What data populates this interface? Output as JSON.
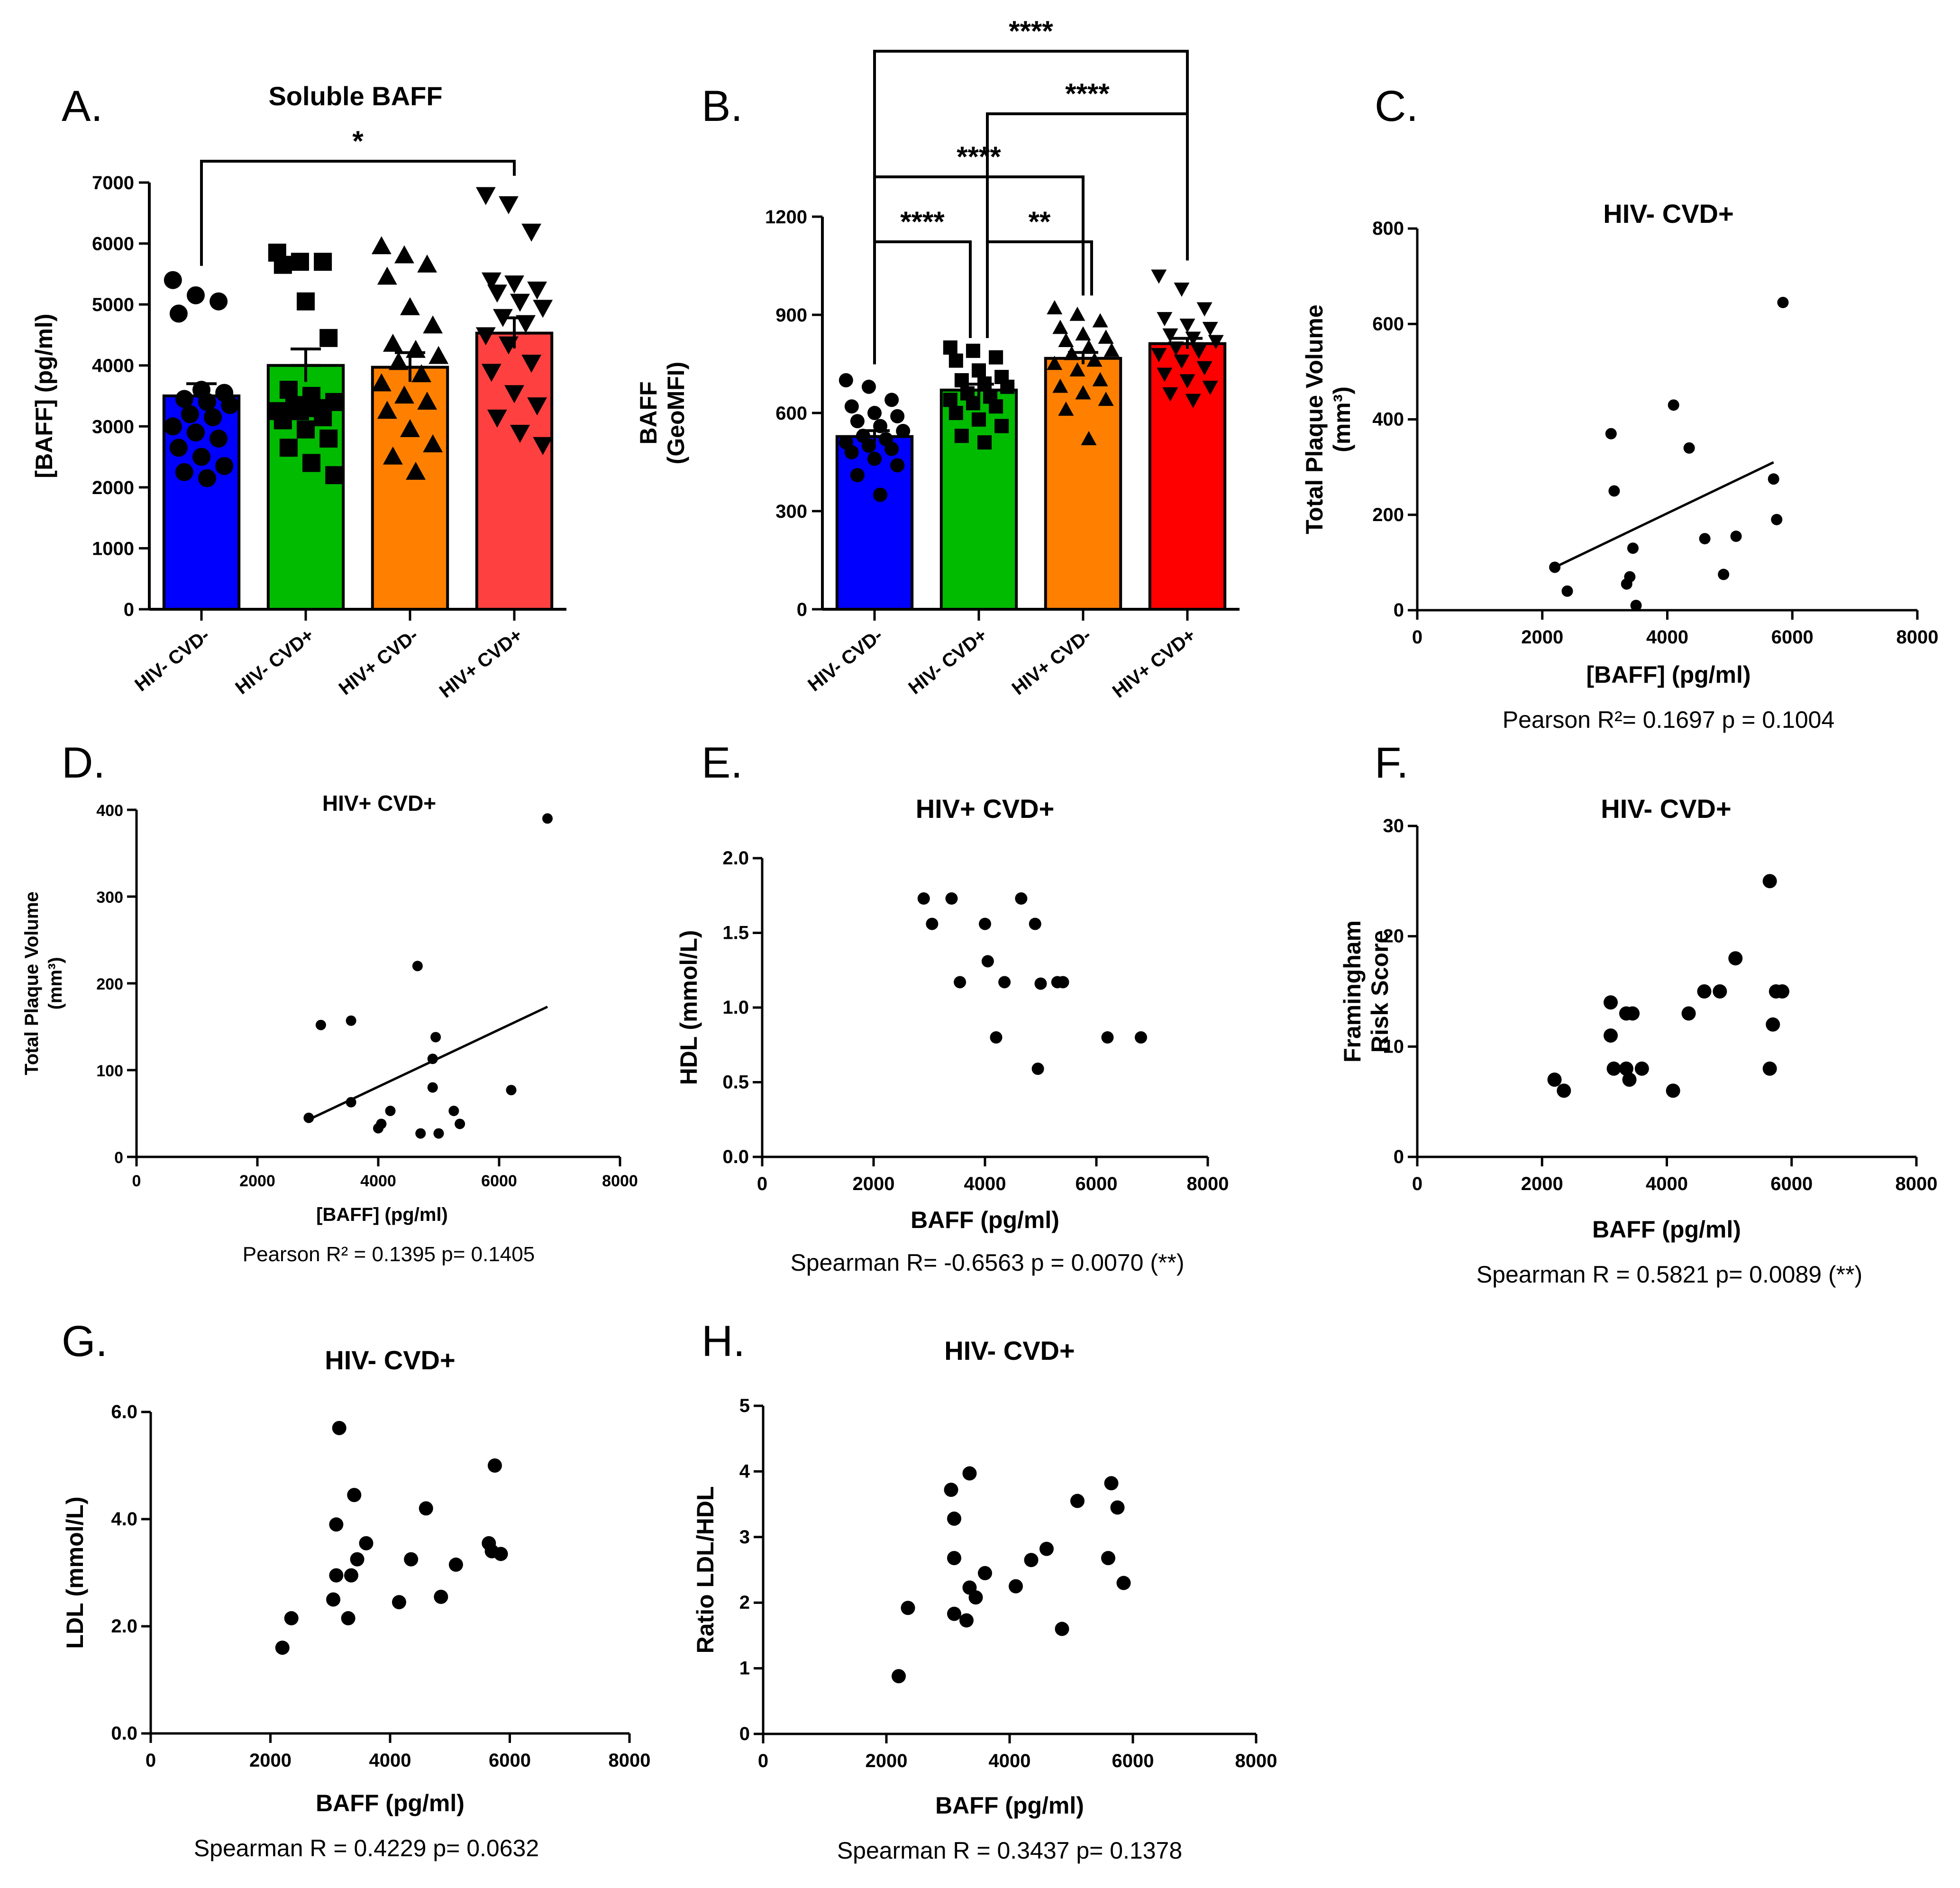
{
  "figure": {
    "panels": [
      "A.",
      "B.",
      "C.",
      "D.",
      "E.",
      "F.",
      "G.",
      "H."
    ]
  },
  "chart_data": [
    {
      "id": "A",
      "type": "bar",
      "panel_label": "A.",
      "title": "Soluble BAFF",
      "ylabel": "[BAFF] (pg/ml)",
      "ylim": [
        0,
        7000
      ],
      "yticks": [
        0,
        1000,
        2000,
        3000,
        4000,
        5000,
        6000,
        7000
      ],
      "categories": [
        "HIV- CVD-",
        "HIV- CVD+",
        "HIV+ CVD-",
        "HIV+ CVD+"
      ],
      "colors": [
        "#0000ff",
        "#00bb00",
        "#ff8000",
        "#ff4040"
      ],
      "marker_shapes": [
        "circle",
        "square",
        "triangle",
        "triangle-down"
      ],
      "means": [
        3500,
        4000,
        3970,
        4530
      ],
      "sem": [
        200,
        270,
        240,
        250
      ],
      "points": [
        [
          5400,
          5150,
          5050,
          4850,
          3600,
          3550,
          3450,
          3400,
          3350,
          3200,
          3150,
          3000,
          2900,
          2800,
          2650,
          2500,
          2350,
          2250,
          2150
        ],
        [
          5850,
          5700,
          5700,
          5650,
          5050,
          4450,
          3600,
          3500,
          3400,
          3350,
          3300,
          3250,
          3250,
          3150,
          3100,
          2950,
          2800,
          2650,
          2400,
          2200
        ],
        [
          5950,
          5800,
          5650,
          5450,
          4950,
          4650,
          4350,
          4250,
          4150,
          4050,
          3850,
          3700,
          3500,
          3400,
          3250,
          2950,
          2700,
          2500,
          2250
        ],
        [
          6800,
          6650,
          6200,
          5400,
          5350,
          5250,
          5200,
          5050,
          4950,
          4800,
          4700,
          4500,
          4350,
          4050,
          3900,
          3550,
          3350,
          3150,
          2900,
          2700
        ]
      ],
      "comparisons": [
        {
          "from": 0,
          "to": 3,
          "label": "*"
        }
      ]
    },
    {
      "id": "B",
      "type": "bar",
      "panel_label": "B.",
      "title": "",
      "ylabel": "BAFF",
      "ylabel2": "(GeoMFI)",
      "ylim": [
        0,
        1200
      ],
      "yticks": [
        0,
        300,
        600,
        900,
        1200
      ],
      "categories": [
        "HIV- CVD-",
        "HIV- CVD+",
        "HIV+ CVD-",
        "HIV+ CVD+"
      ],
      "colors": [
        "#0000ff",
        "#00bb00",
        "#ff8000",
        "#ff0000"
      ],
      "marker_shapes": [
        "circle",
        "square",
        "triangle",
        "triangle-down"
      ],
      "means": [
        528,
        670,
        767,
        812
      ],
      "sem": [
        18,
        18,
        18,
        16
      ],
      "points": [
        [
          700,
          680,
          640,
          620,
          600,
          590,
          575,
          560,
          545,
          530,
          520,
          510,
          500,
          490,
          480,
          460,
          440,
          410,
          350
        ],
        [
          800,
          790,
          770,
          760,
          730,
          710,
          700,
          690,
          680,
          660,
          650,
          640,
          630,
          620,
          600,
          580,
          560,
          530,
          510
        ],
        [
          920,
          900,
          880,
          860,
          840,
          830,
          820,
          800,
          790,
          780,
          760,
          750,
          730,
          700,
          680,
          660,
          640,
          610,
          520
        ],
        [
          1020,
          980,
          920,
          890,
          870,
          860,
          840,
          830,
          820,
          800,
          790,
          780,
          760,
          740,
          720,
          700,
          680,
          660,
          640
        ]
      ],
      "comparisons": [
        {
          "from": 0,
          "to": 3,
          "label": "****"
        },
        {
          "from": 1,
          "to": 3,
          "label": "****"
        },
        {
          "from": 0,
          "to": 2,
          "label": "****"
        },
        {
          "from": 0,
          "to": 1,
          "label": "****"
        },
        {
          "from": 1,
          "to": 2,
          "label": "**"
        }
      ]
    },
    {
      "id": "C",
      "type": "scatter",
      "panel_label": "C.",
      "title": "HIV- CVD+",
      "xlabel": "[BAFF] (pg/ml)",
      "ylabel": "Total Plaque Volume",
      "ylabel2": "(mm³)",
      "xlim": [
        0,
        8000
      ],
      "ylim": [
        0,
        800
      ],
      "xticks": [
        0,
        2000,
        4000,
        6000,
        8000
      ],
      "yticks": [
        0,
        200,
        400,
        600,
        800
      ],
      "x": [
        2200,
        2400,
        3100,
        3150,
        3350,
        3400,
        3450,
        3500,
        4100,
        4350,
        4600,
        4900,
        5100,
        5700,
        5750,
        5850
      ],
      "y": [
        90,
        40,
        370,
        250,
        55,
        70,
        130,
        10,
        430,
        340,
        150,
        75,
        155,
        275,
        190,
        645
      ],
      "fit": [
        [
          2200,
          90
        ],
        [
          5700,
          310
        ]
      ],
      "stat": "Pearson R²= 0.1697     p = 0.1004"
    },
    {
      "id": "D",
      "type": "scatter",
      "panel_label": "D.",
      "title": "HIV+ CVD+",
      "xlabel": "[BAFF] (pg/ml)",
      "ylabel": "Total Plaque Volume",
      "ylabel2": "(mm³)",
      "xlim": [
        0,
        8000
      ],
      "ylim": [
        0,
        400
      ],
      "xticks": [
        0,
        2000,
        4000,
        6000,
        8000
      ],
      "yticks": [
        0,
        100,
        200,
        300,
        400
      ],
      "x": [
        2850,
        3050,
        3550,
        3550,
        4000,
        4050,
        4200,
        4650,
        4700,
        4900,
        4900,
        4950,
        5000,
        5250,
        5350,
        6200,
        6800
      ],
      "y": [
        45,
        152,
        157,
        63,
        33,
        38,
        53,
        220,
        27,
        113,
        80,
        138,
        27,
        53,
        38,
        77,
        390
      ],
      "fit": [
        [
          2850,
          43
        ],
        [
          6800,
          173
        ]
      ],
      "stat": "Pearson R² = 0.1395        p= 0.1405"
    },
    {
      "id": "E",
      "type": "scatter",
      "panel_label": "E.",
      "title": "HIV+ CVD+",
      "xlabel": "BAFF (pg/ml)",
      "ylabel": "HDL (mmol/L)",
      "xlim": [
        0,
        8000
      ],
      "ylim": [
        0,
        2.0
      ],
      "xticks": [
        0,
        2000,
        4000,
        6000,
        8000
      ],
      "yticks": [
        "0.0",
        "0.5",
        "1.0",
        "1.5",
        "2.0"
      ],
      "x": [
        2900,
        3050,
        3400,
        3550,
        4000,
        4050,
        4200,
        4350,
        4650,
        4900,
        4950,
        5000,
        5300,
        5400,
        6200,
        6800
      ],
      "y": [
        1.73,
        1.56,
        1.73,
        1.17,
        1.56,
        1.31,
        0.8,
        1.17,
        1.73,
        1.56,
        0.59,
        1.16,
        1.17,
        1.17,
        0.8,
        0.8
      ],
      "stat": "Spearman R= -0.6563   p = 0.0070 (**)"
    },
    {
      "id": "F",
      "type": "scatter",
      "panel_label": "F.",
      "title": "HIV- CVD+",
      "xlabel": "BAFF (pg/ml)",
      "ylabel": "Framingham",
      "ylabel2": "Risk Score",
      "xlim": [
        0,
        8000
      ],
      "ylim": [
        0,
        30
      ],
      "xticks": [
        0,
        2000,
        4000,
        6000,
        8000
      ],
      "yticks": [
        0,
        10,
        20,
        30
      ],
      "x": [
        2200,
        2350,
        3100,
        3100,
        3150,
        3350,
        3350,
        3400,
        3450,
        3600,
        4100,
        4350,
        4600,
        4850,
        5100,
        5650,
        5650,
        5700,
        5750,
        5850
      ],
      "y": [
        7,
        6,
        14,
        11,
        8,
        13,
        8,
        7,
        13,
        8,
        6,
        13,
        15,
        15,
        18,
        25,
        8,
        12,
        15,
        15
      ],
      "stat": "Spearman R = 0.5821   p= 0.0089 (**)"
    },
    {
      "id": "G",
      "type": "scatter",
      "panel_label": "G.",
      "title": "HIV- CVD+",
      "xlabel": "BAFF (pg/ml)",
      "ylabel": "LDL (mmol/L)",
      "xlim": [
        0,
        8000
      ],
      "ylim": [
        0,
        6.0
      ],
      "xticks": [
        0,
        2000,
        4000,
        6000,
        8000
      ],
      "yticks": [
        "0.0",
        "2.0",
        "4.0",
        "6.0"
      ],
      "x": [
        2200,
        2350,
        3050,
        3100,
        3100,
        3150,
        3300,
        3350,
        3400,
        3450,
        3600,
        4150,
        4350,
        4600,
        4850,
        5100,
        5650,
        5700,
        5750,
        5850
      ],
      "y": [
        1.6,
        2.15,
        2.5,
        2.95,
        3.9,
        5.7,
        2.15,
        2.95,
        4.45,
        3.25,
        3.55,
        2.45,
        3.25,
        4.2,
        2.55,
        3.15,
        3.55,
        3.4,
        5.0,
        3.35
      ],
      "stat": "Spearman R = 0.4229   p= 0.0632"
    },
    {
      "id": "H",
      "type": "scatter",
      "panel_label": "H.",
      "title": "HIV- CVD+",
      "xlabel": "BAFF (pg/ml)",
      "ylabel": "Ratio LDL/HDL",
      "xlim": [
        0,
        8000
      ],
      "ylim": [
        0,
        5
      ],
      "xticks": [
        0,
        2000,
        4000,
        6000,
        8000
      ],
      "yticks": [
        0,
        1,
        2,
        3,
        4,
        5
      ],
      "x": [
        2200,
        2350,
        3050,
        3100,
        3100,
        3100,
        3300,
        3350,
        3350,
        3450,
        3600,
        4100,
        4350,
        4600,
        4850,
        5100,
        5600,
        5650,
        5750,
        5850
      ],
      "y": [
        0.88,
        1.92,
        3.72,
        3.28,
        2.68,
        1.83,
        1.73,
        3.97,
        2.23,
        2.08,
        2.45,
        2.25,
        2.65,
        2.82,
        1.6,
        3.55,
        2.68,
        3.82,
        3.45,
        2.3
      ],
      "stat": "Spearman R = 0.3437   p= 0.1378"
    }
  ]
}
